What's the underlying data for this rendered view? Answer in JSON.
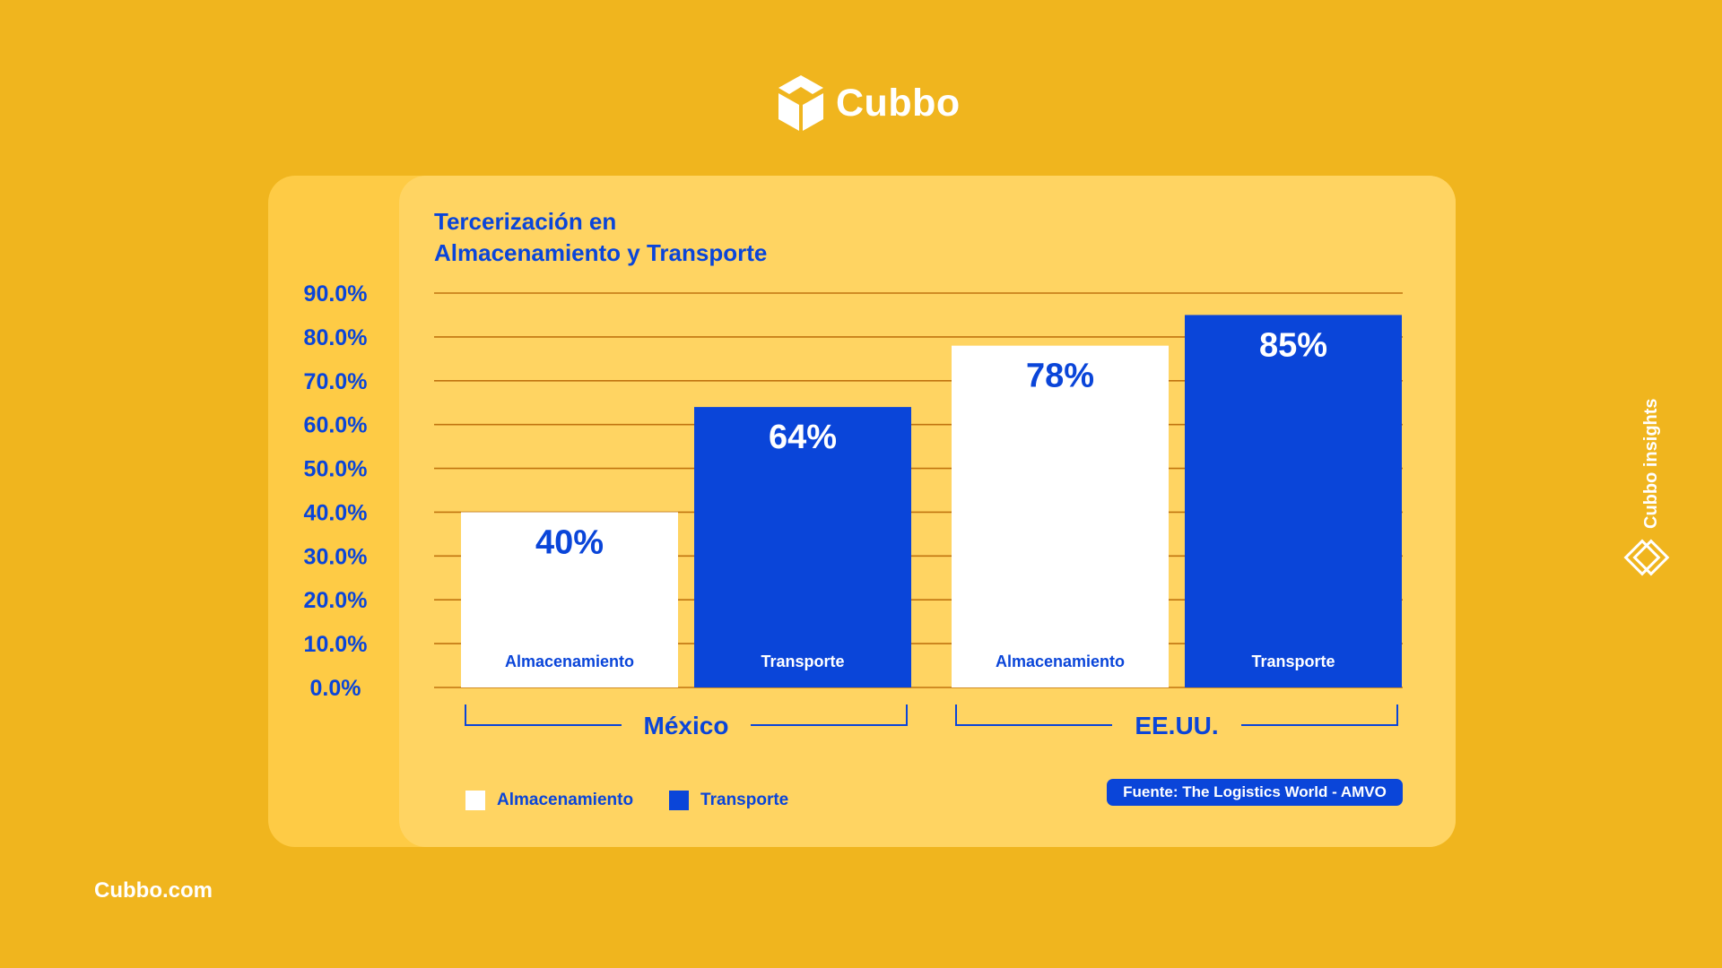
{
  "brand": {
    "name": "Cubbo",
    "logo_icon": "cube-logo-icon",
    "site": "Cubbo.com",
    "side_badge": "Cubbo insights",
    "side_icon": "diamond-logo-icon"
  },
  "colors": {
    "background": "#F0B51E",
    "card": "#FFD462",
    "blue": "#0A45D9",
    "white": "#FFFFFF",
    "grid": "#C0740F"
  },
  "source": "Fuente: The Logistics World - AMVO",
  "chart_data": {
    "type": "bar",
    "title_lines": [
      "Tercerización en",
      "Almacenamiento y Transporte"
    ],
    "ylim": [
      0,
      90
    ],
    "yticks": [
      "90.0%",
      "80.0%",
      "70.0%",
      "60.0%",
      "50.0%",
      "40.0%",
      "30.0%",
      "20.0%",
      "10.0%",
      "0.0%"
    ],
    "groups": [
      {
        "label": "México",
        "bars": [
          {
            "series": "Almacenamiento",
            "value": 40,
            "label": "40%",
            "bar_text": "Almacenamiento"
          },
          {
            "series": "Transporte",
            "value": 64,
            "label": "64%",
            "bar_text": "Transporte"
          }
        ]
      },
      {
        "label": "EE.UU.",
        "bars": [
          {
            "series": "Almacenamiento",
            "value": 78,
            "label": "78%",
            "bar_text": "Almacenamiento"
          },
          {
            "series": "Transporte",
            "value": 85,
            "label": "85%",
            "bar_text": "Transporte"
          }
        ]
      }
    ],
    "legend": [
      {
        "name": "Almacenamiento",
        "color": "#FFFFFF"
      },
      {
        "name": "Transporte",
        "color": "#0A45D9"
      }
    ],
    "legend_position": "bottom-left",
    "grid": true
  }
}
